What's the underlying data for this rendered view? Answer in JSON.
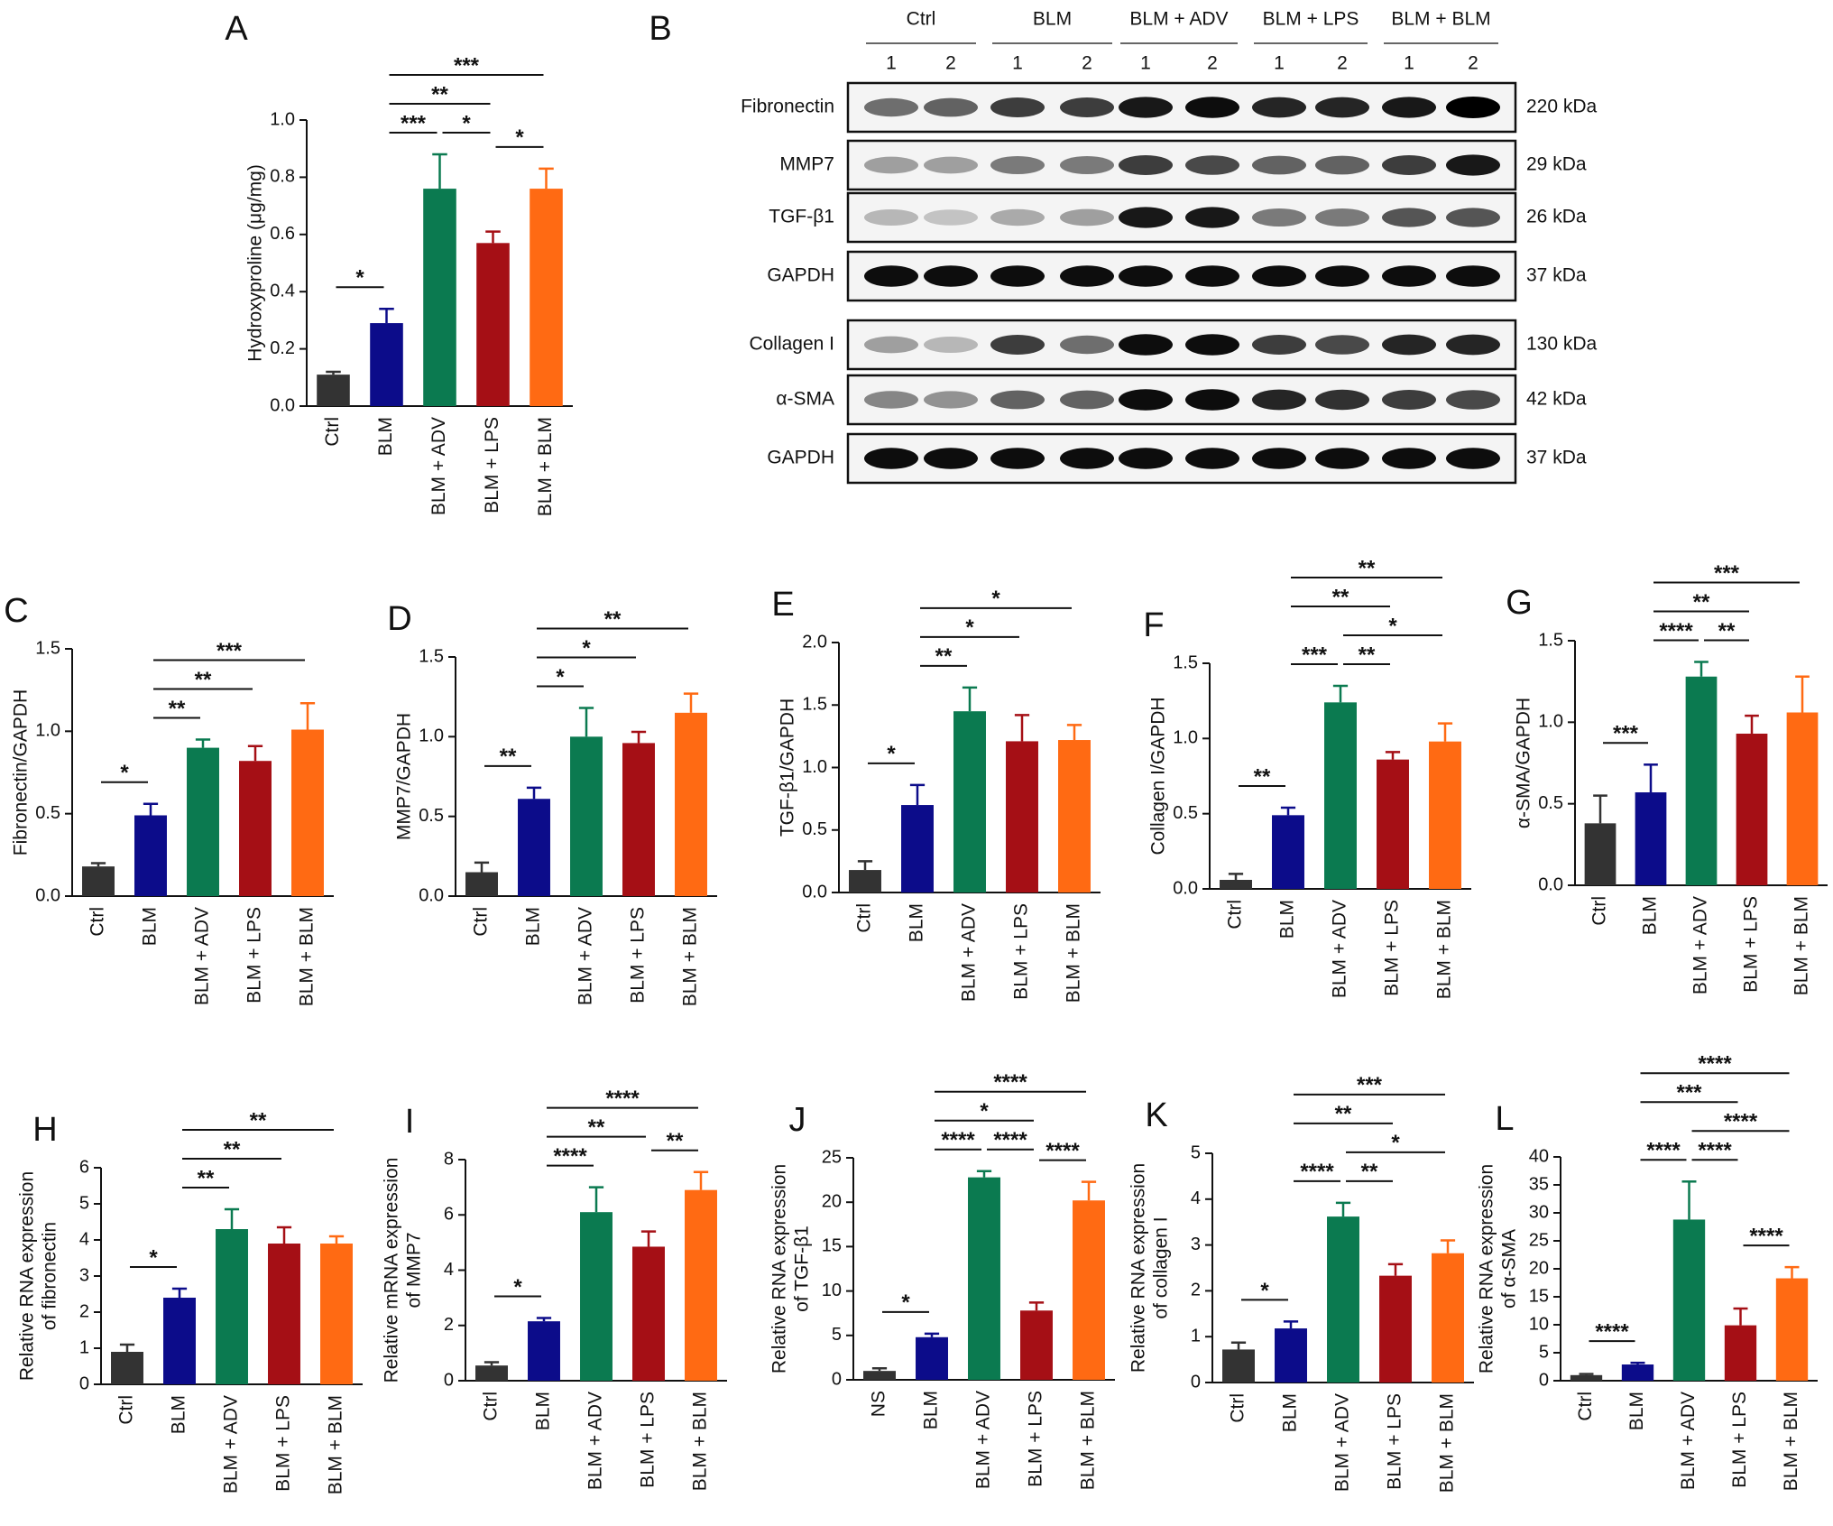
{
  "chart_data": [
    {
      "panel": "A",
      "type": "bar",
      "y_label": [
        "Hydroxyproline (μg/mg)"
      ],
      "categories": [
        "Ctrl",
        "BLM",
        "BLM + ADV",
        "BLM + LPS",
        "BLM + BLM"
      ],
      "values": [
        0.11,
        0.29,
        0.76,
        0.57,
        0.76
      ],
      "errors": [
        0.01,
        0.05,
        0.12,
        0.04,
        0.07
      ],
      "colors": [
        "#333333",
        "#0c0c8a",
        "#0b7a50",
        "#a50f15",
        "#ff6a13"
      ],
      "ylim": [
        0,
        1.0
      ],
      "yticks": [
        {
          "value": 0,
          "label": "0.0"
        },
        0.2,
        0.4,
        0.6,
        0.8,
        {
          "value": 1,
          "label": "1.0"
        }
      ],
      "significance": [
        {
          "from": 0,
          "to": 1,
          "label": "*"
        },
        {
          "from": 1,
          "to": 2,
          "label": "***"
        },
        {
          "from": 2,
          "to": 3,
          "label": "*"
        },
        {
          "from": 3,
          "to": 4,
          "label": "*"
        },
        {
          "from": 1,
          "to": 3,
          "label": "**"
        },
        {
          "from": 1,
          "to": 4,
          "label": "***"
        }
      ]
    },
    {
      "panel": "C",
      "type": "bar",
      "y_label": [
        "Fibronectin/GAPDH"
      ],
      "categories": [
        "Ctrl",
        "BLM",
        "BLM + ADV",
        "BLM + LPS",
        "BLM + BLM"
      ],
      "values": [
        0.18,
        0.49,
        0.9,
        0.82,
        1.01
      ],
      "errors": [
        0.02,
        0.07,
        0.05,
        0.09,
        0.16
      ],
      "colors": [
        "#333333",
        "#0c0c8a",
        "#0b7a50",
        "#a50f15",
        "#ff6a13"
      ],
      "ylim": [
        0,
        1.5
      ],
      "yticks": [
        {
          "value": 0,
          "label": "0.0"
        },
        0.5,
        {
          "value": 1,
          "label": "1.0"
        },
        1.5
      ],
      "significance": [
        {
          "from": 0,
          "to": 1,
          "label": "*"
        },
        {
          "from": 1,
          "to": 2,
          "label": "**"
        },
        {
          "from": 1,
          "to": 3,
          "label": "**"
        },
        {
          "from": 1,
          "to": 4,
          "label": "***"
        }
      ]
    },
    {
      "panel": "D",
      "type": "bar",
      "y_label": [
        "MMP7/GAPDH"
      ],
      "categories": [
        "Ctrl",
        "BLM",
        "BLM + ADV",
        "BLM + LPS",
        "BLM + BLM"
      ],
      "values": [
        0.15,
        0.61,
        1.0,
        0.96,
        1.15
      ],
      "errors": [
        0.06,
        0.07,
        0.18,
        0.07,
        0.12
      ],
      "colors": [
        "#333333",
        "#0c0c8a",
        "#0b7a50",
        "#a50f15",
        "#ff6a13"
      ],
      "ylim": [
        0,
        1.5
      ],
      "yticks": [
        {
          "value": 0,
          "label": "0.0"
        },
        0.5,
        {
          "value": 1,
          "label": "1.0"
        },
        1.5
      ],
      "significance": [
        {
          "from": 0,
          "to": 1,
          "label": "**"
        },
        {
          "from": 1,
          "to": 2,
          "label": "*"
        },
        {
          "from": 1,
          "to": 3,
          "label": "*"
        },
        {
          "from": 1,
          "to": 4,
          "label": "**"
        }
      ]
    },
    {
      "panel": "E",
      "type": "bar",
      "y_label": [
        "TGF-β1/GAPDH"
      ],
      "categories": [
        "Ctrl",
        "BLM",
        "BLM + ADV",
        "BLM + LPS",
        "BLM + BLM"
      ],
      "values": [
        0.18,
        0.7,
        1.45,
        1.21,
        1.22
      ],
      "errors": [
        0.07,
        0.16,
        0.19,
        0.21,
        0.12
      ],
      "colors": [
        "#333333",
        "#0c0c8a",
        "#0b7a50",
        "#a50f15",
        "#ff6a13"
      ],
      "ylim": [
        0,
        2.0
      ],
      "yticks": [
        {
          "value": 0,
          "label": "0.0"
        },
        0.5,
        {
          "value": 1,
          "label": "1.0"
        },
        1.5,
        {
          "value": 2,
          "label": "2.0"
        }
      ],
      "significance": [
        {
          "from": 0,
          "to": 1,
          "label": "*"
        },
        {
          "from": 1,
          "to": 2,
          "label": "**"
        },
        {
          "from": 1,
          "to": 3,
          "label": "*"
        },
        {
          "from": 1,
          "to": 4,
          "label": "*"
        }
      ]
    },
    {
      "panel": "F",
      "type": "bar",
      "y_label": [
        "Collagen I/GAPDH"
      ],
      "categories": [
        "Ctrl",
        "BLM",
        "BLM + ADV",
        "BLM + LPS",
        "BLM + BLM"
      ],
      "values": [
        0.06,
        0.49,
        1.24,
        0.86,
        0.98
      ],
      "errors": [
        0.04,
        0.05,
        0.11,
        0.05,
        0.12
      ],
      "colors": [
        "#333333",
        "#0c0c8a",
        "#0b7a50",
        "#a50f15",
        "#ff6a13"
      ],
      "ylim": [
        0,
        1.5
      ],
      "yticks": [
        {
          "value": 0,
          "label": "0.0"
        },
        0.5,
        {
          "value": 1,
          "label": "1.0"
        },
        1.5
      ],
      "significance": [
        {
          "from": 0,
          "to": 1,
          "label": "**"
        },
        {
          "from": 1,
          "to": 2,
          "label": "***"
        },
        {
          "from": 2,
          "to": 3,
          "label": "**"
        },
        {
          "from": 2,
          "to": 4,
          "label": "*"
        },
        {
          "from": 1,
          "to": 3,
          "label": "**"
        },
        {
          "from": 1,
          "to": 4,
          "label": "**"
        }
      ]
    },
    {
      "panel": "G",
      "type": "bar",
      "y_label": [
        "α-SMA/GAPDH"
      ],
      "categories": [
        "Ctrl",
        "BLM",
        "BLM + ADV",
        "BLM + LPS",
        "BLM + BLM"
      ],
      "values": [
        0.38,
        0.57,
        1.28,
        0.93,
        1.06
      ],
      "errors": [
        0.17,
        0.17,
        0.09,
        0.11,
        0.22
      ],
      "colors": [
        "#333333",
        "#0c0c8a",
        "#0b7a50",
        "#a50f15",
        "#ff6a13"
      ],
      "ylim": [
        0,
        1.5
      ],
      "yticks": [
        {
          "value": 0,
          "label": "0.0"
        },
        0.5,
        {
          "value": 1,
          "label": "1.0"
        },
        1.5
      ],
      "significance": [
        {
          "from": 0,
          "to": 1,
          "label": "***"
        },
        {
          "from": 1,
          "to": 2,
          "label": "****"
        },
        {
          "from": 2,
          "to": 3,
          "label": "**"
        },
        {
          "from": 1,
          "to": 3,
          "label": "**"
        },
        {
          "from": 1,
          "to": 4,
          "label": "***"
        }
      ]
    },
    {
      "panel": "H",
      "type": "bar",
      "y_label": [
        "Relative RNA expression",
        "of fibronectin"
      ],
      "categories": [
        "Ctrl",
        "BLM",
        "BLM + ADV",
        "BLM + LPS",
        "BLM + BLM"
      ],
      "values": [
        0.9,
        2.4,
        4.3,
        3.9,
        3.9
      ],
      "errors": [
        0.2,
        0.25,
        0.55,
        0.45,
        0.2
      ],
      "colors": [
        "#333333",
        "#0c0c8a",
        "#0b7a50",
        "#a50f15",
        "#ff6a13"
      ],
      "ylim": [
        0,
        6
      ],
      "yticks": [
        0,
        1,
        2,
        3,
        4,
        5,
        6
      ],
      "significance": [
        {
          "from": 0,
          "to": 1,
          "label": "*"
        },
        {
          "from": 1,
          "to": 2,
          "label": "**"
        },
        {
          "from": 1,
          "to": 3,
          "label": "**"
        },
        {
          "from": 1,
          "to": 4,
          "label": "**"
        }
      ]
    },
    {
      "panel": "I",
      "type": "bar",
      "y_label": [
        "Relative mRNA expression",
        "of MMP7"
      ],
      "categories": [
        "Ctrl",
        "BLM",
        "BLM + ADV",
        "BLM + LPS",
        "BLM + BLM"
      ],
      "values": [
        0.55,
        2.15,
        6.1,
        4.85,
        6.9
      ],
      "errors": [
        0.12,
        0.12,
        0.9,
        0.55,
        0.65
      ],
      "colors": [
        "#333333",
        "#0c0c8a",
        "#0b7a50",
        "#a50f15",
        "#ff6a13"
      ],
      "ylim": [
        0,
        8
      ],
      "yticks": [
        0,
        2,
        4,
        6,
        8
      ],
      "significance": [
        {
          "from": 0,
          "to": 1,
          "label": "*"
        },
        {
          "from": 1,
          "to": 2,
          "label": "****"
        },
        {
          "from": 3,
          "to": 4,
          "label": "**"
        },
        {
          "from": 1,
          "to": 3,
          "label": "**"
        },
        {
          "from": 1,
          "to": 4,
          "label": "****"
        }
      ]
    },
    {
      "panel": "J",
      "type": "bar",
      "y_label": [
        "Relative RNA expression",
        "of TGF-β1"
      ],
      "categories": [
        "NS",
        "BLM",
        "BLM + ADV",
        "BLM + LPS",
        "BLM + BLM"
      ],
      "values": [
        1.0,
        4.8,
        22.8,
        7.8,
        20.2
      ],
      "errors": [
        0.3,
        0.4,
        0.7,
        0.9,
        2.1
      ],
      "colors": [
        "#333333",
        "#0c0c8a",
        "#0b7a50",
        "#a50f15",
        "#ff6a13"
      ],
      "ylim": [
        0,
        25
      ],
      "yticks": [
        0,
        5,
        10,
        15,
        20,
        25
      ],
      "significance": [
        {
          "from": 0,
          "to": 1,
          "label": "*"
        },
        {
          "from": 1,
          "to": 2,
          "label": "****"
        },
        {
          "from": 2,
          "to": 3,
          "label": "****"
        },
        {
          "from": 3,
          "to": 4,
          "label": "****"
        },
        {
          "from": 1,
          "to": 3,
          "label": "*"
        },
        {
          "from": 1,
          "to": 4,
          "label": "****"
        }
      ]
    },
    {
      "panel": "K",
      "type": "bar",
      "y_label": [
        "Relative RNA expression",
        "of collagen I"
      ],
      "categories": [
        "Ctrl",
        "BLM",
        "BLM + ADV",
        "BLM + LPS",
        "BLM + BLM"
      ],
      "values": [
        0.72,
        1.18,
        3.62,
        2.33,
        2.82
      ],
      "errors": [
        0.15,
        0.15,
        0.3,
        0.25,
        0.28
      ],
      "colors": [
        "#333333",
        "#0c0c8a",
        "#0b7a50",
        "#a50f15",
        "#ff6a13"
      ],
      "ylim": [
        0,
        5
      ],
      "yticks": [
        0,
        1,
        2,
        3,
        4,
        5
      ],
      "significance": [
        {
          "from": 0,
          "to": 1,
          "label": "*"
        },
        {
          "from": 1,
          "to": 2,
          "label": "****"
        },
        {
          "from": 2,
          "to": 3,
          "label": "**"
        },
        {
          "from": 2,
          "to": 4,
          "label": "*"
        },
        {
          "from": 1,
          "to": 3,
          "label": "**"
        },
        {
          "from": 1,
          "to": 4,
          "label": "***"
        }
      ]
    },
    {
      "panel": "L",
      "type": "bar",
      "y_label": [
        "Relative RNA expression",
        "of α-SMA"
      ],
      "categories": [
        "Ctrl",
        "BLM",
        "BLM + ADV",
        "BLM + LPS",
        "BLM + BLM"
      ],
      "values": [
        1.0,
        2.9,
        28.8,
        9.9,
        18.3
      ],
      "errors": [
        0.2,
        0.3,
        6.8,
        3.0,
        2.0
      ],
      "colors": [
        "#333333",
        "#0c0c8a",
        "#0b7a50",
        "#a50f15",
        "#ff6a13"
      ],
      "ylim": [
        0,
        40
      ],
      "yticks": [
        0,
        5,
        10,
        15,
        20,
        25,
        30,
        35,
        40
      ],
      "significance": [
        {
          "from": 0,
          "to": 1,
          "label": "****"
        },
        {
          "from": 3,
          "to": 4,
          "label": "****"
        },
        {
          "from": 1,
          "to": 2,
          "label": "****"
        },
        {
          "from": 2,
          "to": 3,
          "label": "****"
        },
        {
          "from": 2,
          "to": 4,
          "label": "****"
        },
        {
          "from": 1,
          "to": 3,
          "label": "***"
        },
        {
          "from": 1,
          "to": 4,
          "label": "****"
        }
      ]
    }
  ],
  "blot": {
    "panel": "B",
    "groups": [
      {
        "name": "Ctrl",
        "lanes": [
          "1",
          "2"
        ]
      },
      {
        "name": "BLM",
        "lanes": [
          "1",
          "2"
        ]
      },
      {
        "name": "BLM + ADV",
        "lanes": [
          "1",
          "2"
        ]
      },
      {
        "name": "BLM + LPS",
        "lanes": [
          "1",
          "2"
        ]
      },
      {
        "name": "BLM + BLM",
        "lanes": [
          "1",
          "2"
        ]
      }
    ],
    "rows": [
      {
        "label": "Fibronectin",
        "size": "220 kDa"
      },
      {
        "label": "MMP7",
        "size": "29 kDa"
      },
      {
        "label": "TGF-β1",
        "size": "26 kDa"
      },
      {
        "label": "GAPDH",
        "size": "37 kDa"
      },
      {
        "label": "Collagen I",
        "size": "130 kDa"
      },
      {
        "label": "α-SMA",
        "size": "42 kDa"
      },
      {
        "label": "GAPDH",
        "size": "37 kDa"
      }
    ]
  }
}
